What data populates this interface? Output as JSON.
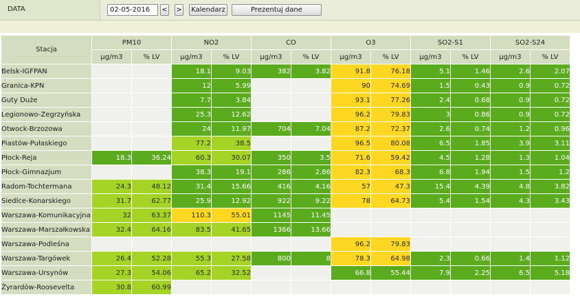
{
  "toolbar": {
    "label": "DATA",
    "date_value": "02-05-2016",
    "prev_label": "<",
    "next_label": ">",
    "calendar_label": "Kalendarz",
    "present_label": "Prezentuj dane"
  },
  "colors": {
    "good": "#5aab1d",
    "moderate": "#a6d426",
    "sufficient": "#fdd722",
    "empty": "#f0f0ed",
    "header": "#d4ddc0"
  },
  "table": {
    "station_header": "Stacja",
    "pollutants": [
      "PM10",
      "NO2",
      "CO",
      "O3",
      "SO2-S1",
      "SO2-S24"
    ],
    "units": [
      "µg/m3",
      "% LV",
      "µg/m3",
      "% LV",
      "µg/m3",
      "% LV",
      "µg/m3",
      "% LV",
      "µg/m3",
      "% LV",
      "µg/m3",
      "% LV"
    ],
    "rows": [
      {
        "name": "Belsk-IGFPAN",
        "cells": [
          [
            "",
            "e"
          ],
          [
            "",
            "e"
          ],
          [
            "18.1",
            "g"
          ],
          [
            "9.03",
            "g"
          ],
          [
            "382",
            "g"
          ],
          [
            "3.82",
            "g"
          ],
          [
            "91.8",
            "y"
          ],
          [
            "76.18",
            "y"
          ],
          [
            "5.1",
            "g"
          ],
          [
            "1.46",
            "g"
          ],
          [
            "2.6",
            "g"
          ],
          [
            "2.07",
            "g"
          ]
        ]
      },
      {
        "name": "Granica-KPN",
        "cells": [
          [
            "",
            "e"
          ],
          [
            "",
            "e"
          ],
          [
            "12",
            "g"
          ],
          [
            "5.99",
            "g"
          ],
          [
            "",
            "e"
          ],
          [
            "",
            "e"
          ],
          [
            "90",
            "y"
          ],
          [
            "74.69",
            "y"
          ],
          [
            "1.5",
            "g"
          ],
          [
            "0.43",
            "g"
          ],
          [
            "0.9",
            "g"
          ],
          [
            "0.72",
            "g"
          ]
        ]
      },
      {
        "name": "Guty Duże",
        "cells": [
          [
            "",
            "e"
          ],
          [
            "",
            "e"
          ],
          [
            "7.7",
            "g"
          ],
          [
            "3.84",
            "g"
          ],
          [
            "",
            "e"
          ],
          [
            "",
            "e"
          ],
          [
            "93.1",
            "y"
          ],
          [
            "77.26",
            "y"
          ],
          [
            "2.4",
            "g"
          ],
          [
            "0.68",
            "g"
          ],
          [
            "0.9",
            "g"
          ],
          [
            "0.72",
            "g"
          ]
        ]
      },
      {
        "name": "Legionowo-Zegrzyńska",
        "cells": [
          [
            "",
            "e"
          ],
          [
            "",
            "e"
          ],
          [
            "25.3",
            "g"
          ],
          [
            "12.62",
            "g"
          ],
          [
            "",
            "e"
          ],
          [
            "",
            "e"
          ],
          [
            "96.2",
            "y"
          ],
          [
            "79.83",
            "y"
          ],
          [
            "3",
            "g"
          ],
          [
            "0.86",
            "g"
          ],
          [
            "0.9",
            "g"
          ],
          [
            "0.72",
            "g"
          ]
        ]
      },
      {
        "name": "Otwock-Brzozowa",
        "cells": [
          [
            "",
            "e"
          ],
          [
            "",
            "e"
          ],
          [
            "24",
            "g"
          ],
          [
            "11.97",
            "g"
          ],
          [
            "704",
            "g"
          ],
          [
            "7.04",
            "g"
          ],
          [
            "87.2",
            "y"
          ],
          [
            "72.37",
            "y"
          ],
          [
            "2.6",
            "g"
          ],
          [
            "0.74",
            "g"
          ],
          [
            "1.2",
            "g"
          ],
          [
            "0.96",
            "g"
          ]
        ]
      },
      {
        "name": "Piastów-Pułaskiego",
        "cells": [
          [
            "",
            "e"
          ],
          [
            "",
            "e"
          ],
          [
            "77.2",
            "l"
          ],
          [
            "38.5",
            "l"
          ],
          [
            "",
            "e"
          ],
          [
            "",
            "e"
          ],
          [
            "96.5",
            "y"
          ],
          [
            "80.08",
            "y"
          ],
          [
            "6.5",
            "g"
          ],
          [
            "1.85",
            "g"
          ],
          [
            "3.9",
            "g"
          ],
          [
            "3.11",
            "g"
          ]
        ]
      },
      {
        "name": "Płock-Reja",
        "cells": [
          [
            "18.3",
            "g"
          ],
          [
            "36.24",
            "g"
          ],
          [
            "60.3",
            "l"
          ],
          [
            "30.07",
            "l"
          ],
          [
            "350",
            "g"
          ],
          [
            "3.5",
            "g"
          ],
          [
            "71.6",
            "y"
          ],
          [
            "59.42",
            "y"
          ],
          [
            "4.5",
            "g"
          ],
          [
            "1.28",
            "g"
          ],
          [
            "1.3",
            "g"
          ],
          [
            "1.04",
            "g"
          ]
        ]
      },
      {
        "name": "Płock-Gimnazjum",
        "cells": [
          [
            "",
            "e"
          ],
          [
            "",
            "e"
          ],
          [
            "38.3",
            "g"
          ],
          [
            "19.1",
            "g"
          ],
          [
            "286",
            "g"
          ],
          [
            "2.86",
            "g"
          ],
          [
            "82.3",
            "y"
          ],
          [
            "68.3",
            "y"
          ],
          [
            "6.8",
            "g"
          ],
          [
            "1.94",
            "g"
          ],
          [
            "1.5",
            "g"
          ],
          [
            "1.2",
            "g"
          ]
        ]
      },
      {
        "name": "Radom-Tochtermana",
        "cells": [
          [
            "24.3",
            "l"
          ],
          [
            "48.12",
            "l"
          ],
          [
            "31.4",
            "g"
          ],
          [
            "15.66",
            "g"
          ],
          [
            "416",
            "g"
          ],
          [
            "4.16",
            "g"
          ],
          [
            "57",
            "y"
          ],
          [
            "47.3",
            "y"
          ],
          [
            "15.4",
            "g"
          ],
          [
            "4.39",
            "g"
          ],
          [
            "4.8",
            "g"
          ],
          [
            "3.82",
            "g"
          ]
        ]
      },
      {
        "name": "Siedlce-Konarskiego",
        "cells": [
          [
            "31.7",
            "l"
          ],
          [
            "62.77",
            "l"
          ],
          [
            "25.9",
            "g"
          ],
          [
            "12.92",
            "g"
          ],
          [
            "922",
            "g"
          ],
          [
            "9.22",
            "g"
          ],
          [
            "78",
            "y"
          ],
          [
            "64.73",
            "y"
          ],
          [
            "5.4",
            "g"
          ],
          [
            "1.54",
            "g"
          ],
          [
            "4.3",
            "g"
          ],
          [
            "3.43",
            "g"
          ]
        ]
      },
      {
        "name": "Warszawa-Komunikacyjna",
        "cells": [
          [
            "32",
            "l"
          ],
          [
            "63.37",
            "l"
          ],
          [
            "110.3",
            "y"
          ],
          [
            "55.01",
            "y"
          ],
          [
            "1145",
            "g"
          ],
          [
            "11.45",
            "g"
          ],
          [
            "",
            "e"
          ],
          [
            "",
            "e"
          ],
          [
            "",
            "e"
          ],
          [
            "",
            "e"
          ],
          [
            "",
            "e"
          ],
          [
            "",
            "e"
          ]
        ]
      },
      {
        "name": "Warszawa-Marszałkowska",
        "cells": [
          [
            "32.4",
            "l"
          ],
          [
            "64.16",
            "l"
          ],
          [
            "83.5",
            "l"
          ],
          [
            "41.65",
            "l"
          ],
          [
            "1366",
            "g"
          ],
          [
            "13.66",
            "g"
          ],
          [
            "",
            "e"
          ],
          [
            "",
            "e"
          ],
          [
            "",
            "e"
          ],
          [
            "",
            "e"
          ],
          [
            "",
            "e"
          ],
          [
            "",
            "e"
          ]
        ]
      },
      {
        "name": "Warszawa-Podleśna",
        "cells": [
          [
            "",
            "e"
          ],
          [
            "",
            "e"
          ],
          [
            "",
            "e"
          ],
          [
            "",
            "e"
          ],
          [
            "",
            "e"
          ],
          [
            "",
            "e"
          ],
          [
            "96.2",
            "y"
          ],
          [
            "79.83",
            "y"
          ],
          [
            "",
            "e"
          ],
          [
            "",
            "e"
          ],
          [
            "",
            "e"
          ],
          [
            "",
            "e"
          ]
        ]
      },
      {
        "name": "Warszawa-Targówek",
        "cells": [
          [
            "26.4",
            "l"
          ],
          [
            "52.28",
            "l"
          ],
          [
            "55.3",
            "l"
          ],
          [
            "27.58",
            "l"
          ],
          [
            "800",
            "g"
          ],
          [
            "8",
            "g"
          ],
          [
            "78.3",
            "y"
          ],
          [
            "64.98",
            "y"
          ],
          [
            "2.3",
            "g"
          ],
          [
            "0.66",
            "g"
          ],
          [
            "1.4",
            "g"
          ],
          [
            "1.12",
            "g"
          ]
        ]
      },
      {
        "name": "Warszawa-Ursynów",
        "cells": [
          [
            "27.3",
            "l"
          ],
          [
            "54.06",
            "l"
          ],
          [
            "65.2",
            "l"
          ],
          [
            "32.52",
            "l"
          ],
          [
            "",
            "e"
          ],
          [
            "",
            "e"
          ],
          [
            "66.8",
            "g"
          ],
          [
            "55.44",
            "g"
          ],
          [
            "7.9",
            "g"
          ],
          [
            "2.25",
            "g"
          ],
          [
            "6.5",
            "g"
          ],
          [
            "5.18",
            "g"
          ]
        ]
      },
      {
        "name": "Żyrardów-Roosevelta",
        "cells": [
          [
            "30.8",
            "l"
          ],
          [
            "60.99",
            "l"
          ],
          [
            "",
            "e"
          ],
          [
            "",
            "e"
          ],
          [
            "",
            "e"
          ],
          [
            "",
            "e"
          ],
          [
            "",
            "e"
          ],
          [
            "",
            "e"
          ],
          [
            "",
            "e"
          ],
          [
            "",
            "e"
          ],
          [
            "",
            "e"
          ],
          [
            "",
            "e"
          ]
        ]
      }
    ]
  }
}
